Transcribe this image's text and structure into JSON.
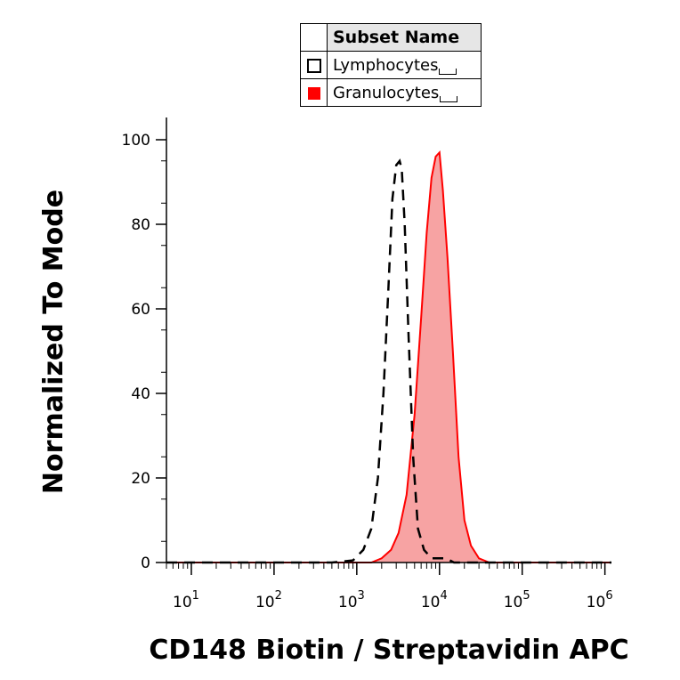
{
  "legend": {
    "header": "Subset Name",
    "items": [
      {
        "label": "Lymphocytes",
        "style": "outline",
        "color": "#000000"
      },
      {
        "label": "Granulocytes",
        "style": "filled",
        "color": "#ff0000"
      }
    ]
  },
  "chart_data": {
    "type": "area",
    "xlabel": "CD148 Biotin / Streptavidin APC",
    "ylabel": "Normalized To Mode",
    "xscale": "log",
    "xlim": [
      5,
      1200000
    ],
    "ylim": [
      0,
      100
    ],
    "xticks": [
      {
        "value": 10,
        "base": "10",
        "exp": "1"
      },
      {
        "value": 100,
        "base": "10",
        "exp": "2"
      },
      {
        "value": 1000,
        "base": "10",
        "exp": "3"
      },
      {
        "value": 10000,
        "base": "10",
        "exp": "4"
      },
      {
        "value": 100000,
        "base": "10",
        "exp": "5"
      },
      {
        "value": 1000000,
        "base": "10",
        "exp": "6"
      }
    ],
    "yticks": [
      "0",
      "20",
      "40",
      "60",
      "80",
      "100"
    ],
    "series": [
      {
        "name": "Lymphocytes",
        "style": "dashed",
        "color": "#000000",
        "points": [
          [
            5,
            0
          ],
          [
            500,
            0
          ],
          [
            900,
            0.5
          ],
          [
            1200,
            3
          ],
          [
            1500,
            8
          ],
          [
            1800,
            20
          ],
          [
            2100,
            40
          ],
          [
            2400,
            64
          ],
          [
            2700,
            86
          ],
          [
            3000,
            94
          ],
          [
            3300,
            95
          ],
          [
            3500,
            93
          ],
          [
            3800,
            80
          ],
          [
            4200,
            55
          ],
          [
            4800,
            25
          ],
          [
            5500,
            8
          ],
          [
            6500,
            3
          ],
          [
            8000,
            1
          ],
          [
            10000,
            1
          ],
          [
            12000,
            1
          ],
          [
            15000,
            0
          ],
          [
            1200000,
            0
          ]
        ]
      },
      {
        "name": "Granulocytes",
        "style": "filled",
        "color": "#ff0000",
        "fill": "#f7a3a3",
        "points": [
          [
            5,
            0
          ],
          [
            1500,
            0
          ],
          [
            2000,
            1
          ],
          [
            2600,
            3
          ],
          [
            3200,
            7
          ],
          [
            4000,
            16
          ],
          [
            5000,
            35
          ],
          [
            6000,
            58
          ],
          [
            7000,
            78
          ],
          [
            8000,
            91
          ],
          [
            9000,
            96
          ],
          [
            10000,
            97
          ],
          [
            11000,
            88
          ],
          [
            12500,
            72
          ],
          [
            14500,
            50
          ],
          [
            17000,
            25
          ],
          [
            20000,
            10
          ],
          [
            24000,
            4
          ],
          [
            30000,
            1
          ],
          [
            40000,
            0
          ],
          [
            1200000,
            0
          ]
        ]
      }
    ]
  }
}
